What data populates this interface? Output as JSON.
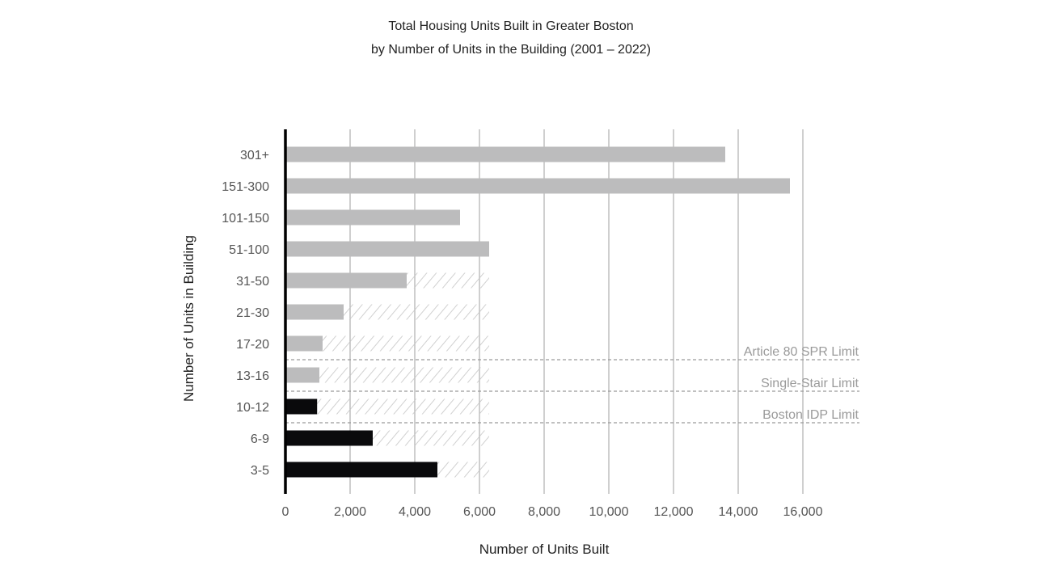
{
  "chart_data": {
    "type": "bar",
    "orientation": "horizontal",
    "title": "Total Housing Units Built in Greater Boston",
    "subtitle": "by Number of Units in the Building (2001 – 2022)",
    "xlabel": "Number of Units Built",
    "ylabel": "Number of Units in Building",
    "xlim": [
      0,
      16000
    ],
    "x_ticks": [
      0,
      2000,
      4000,
      6000,
      8000,
      10000,
      12000,
      14000,
      16000
    ],
    "x_tick_labels": [
      "0",
      "2,000",
      "4,000",
      "6,000",
      "8,000",
      "10,000",
      "12,000",
      "14,000",
      "16,000"
    ],
    "grid": "vertical",
    "categories": [
      "301+",
      "151-300",
      "101-150",
      "51-100",
      "31-50",
      "21-30",
      "17-20",
      "13-16",
      "10-12",
      "6-9",
      "3-5"
    ],
    "values": [
      13600,
      15600,
      5400,
      6300,
      3750,
      1800,
      1150,
      1050,
      980,
      2700,
      4700
    ],
    "bar_colors": [
      "#bcbcbd",
      "#bcbcbd",
      "#bcbcbd",
      "#bcbcbd",
      "#bcbcbd",
      "#bcbcbd",
      "#bcbcbd",
      "#bcbcbd",
      "#0a0a0c",
      "#0a0a0c",
      "#0a0a0c"
    ],
    "hatched_fill_to": [
      null,
      null,
      null,
      null,
      6300,
      6300,
      6300,
      6300,
      6300,
      6300,
      6300
    ],
    "reference_lines": [
      {
        "label": "Article 80 SPR Limit",
        "between": [
          "17-20",
          "13-16"
        ]
      },
      {
        "label": "Single-Stair Limit",
        "between": [
          "13-16",
          "10-12"
        ]
      },
      {
        "label": "Boston IDP Limit",
        "between": [
          "10-12",
          "6-9"
        ]
      }
    ],
    "colors": {
      "gray_bar": "#bcbcbd",
      "black_bar": "#0a0a0c",
      "grid": "#b5b5b5",
      "hatch": "#c4c4c4",
      "reference": "#9a9a9a"
    }
  }
}
